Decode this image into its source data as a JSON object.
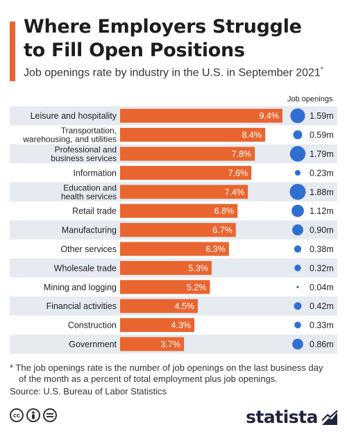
{
  "header": {
    "title_line1": "Where Employers Struggle",
    "title_line2": "to Fill Open Positions",
    "subtitle": "Job openings rate by industry in the U.S. in September 2021",
    "subtitle_mark": "*",
    "column_header": "Job openings"
  },
  "colors": {
    "accent": "#e9652f",
    "bar": "#e9652f",
    "bubble": "#2f6fd1",
    "row_shade": "#e6eaf1",
    "title": "#1d1d1d",
    "brand": "#1f2540"
  },
  "chart_data": {
    "type": "bar",
    "orientation": "horizontal",
    "categories": [
      [
        "Leisure and hospitality"
      ],
      [
        "Transportation,",
        "warehousing, and utilities"
      ],
      [
        "Professional and",
        "business services"
      ],
      [
        "Information"
      ],
      [
        "Education and",
        "health services"
      ],
      [
        "Retail trade"
      ],
      [
        "Manufacturing"
      ],
      [
        "Other services"
      ],
      [
        "Wholesale trade"
      ],
      [
        "Mining and logging"
      ],
      [
        "Financial activities"
      ],
      [
        "Construction"
      ],
      [
        "Government"
      ]
    ],
    "values": [
      9.4,
      8.4,
      7.8,
      7.6,
      7.4,
      6.8,
      6.7,
      6.3,
      5.3,
      5.2,
      4.5,
      4.3,
      3.7
    ],
    "value_labels": [
      "9.4%",
      "8.4%",
      "7.8%",
      "7.6%",
      "7.4%",
      "6.8%",
      "6.7%",
      "6.3%",
      "5.3%",
      "5.2%",
      "4.5%",
      "4.3%",
      "3.7%"
    ],
    "job_openings_millions": [
      1.59,
      0.59,
      1.79,
      0.23,
      1.88,
      1.12,
      0.9,
      0.38,
      0.32,
      0.04,
      0.42,
      0.33,
      0.86
    ],
    "job_openings_labels": [
      "1.59m",
      "0.59m",
      "1.79m",
      "0.23m",
      "1.88m",
      "1.12m",
      "0.90m",
      "0.38m",
      "0.32m",
      "0.04m",
      "0.42m",
      "0.33m",
      "0.86m"
    ],
    "xlim": [
      0,
      9.4
    ],
    "grid": false,
    "alternating_row_shading": true
  },
  "footer": {
    "footnote_line1": "* The job openings rate is the number of job openings on the last business day",
    "footnote_line2": "of the month as a percent of total employment plus job openings.",
    "source": "Source: U.S. Bureau of Labor Statistics",
    "license_icons": [
      "cc-icon",
      "by-icon",
      "nd-icon"
    ],
    "brand": "statista"
  }
}
